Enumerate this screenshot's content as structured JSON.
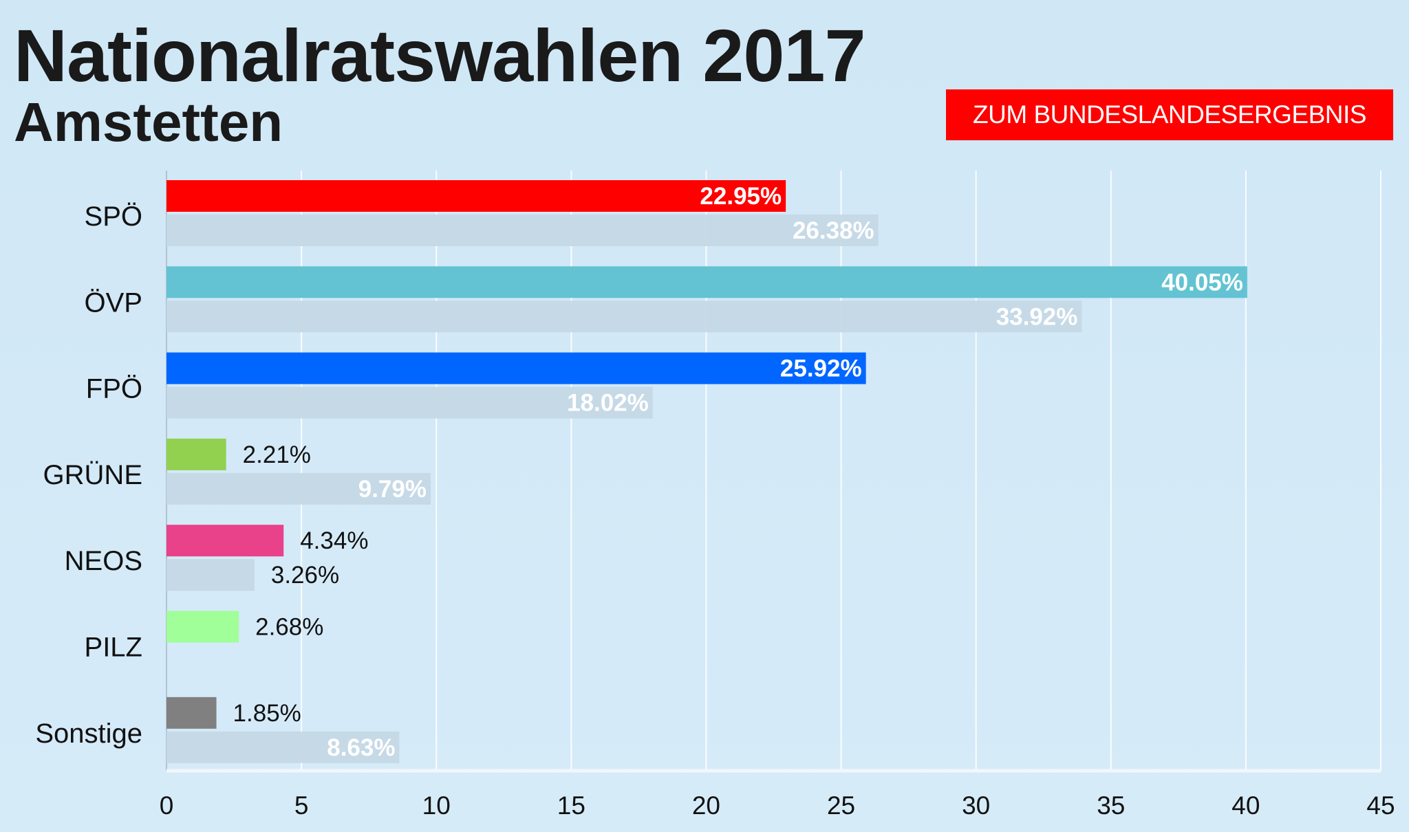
{
  "header": {
    "title": "Nationalratswahlen 2017",
    "subtitle": "Amstetten",
    "button_label": "ZUM BUNDESLANDESERGEBNIS",
    "button_color": "#ff0000"
  },
  "chart_data": {
    "type": "bar",
    "orientation": "horizontal",
    "categories": [
      "SPÖ",
      "ÖVP",
      "FPÖ",
      "GRÜNE",
      "NEOS",
      "PILZ",
      "Sonstige"
    ],
    "series": [
      {
        "values": [
          22.95,
          40.05,
          25.92,
          2.21,
          4.34,
          2.68,
          1.85
        ],
        "labels": [
          "22.95%",
          "40.05%",
          "25.92%",
          "2.21%",
          "4.34%",
          "2.68%",
          "1.85%"
        ],
        "colors": [
          "#ff0000",
          "#63c3d2",
          "#0066ff",
          "#92d050",
          "#e9428a",
          "#a0ff98",
          "#808080"
        ]
      },
      {
        "values": [
          26.38,
          33.92,
          18.02,
          9.79,
          3.26,
          null,
          8.63
        ],
        "labels": [
          "26.38%",
          "33.92%",
          "18.02%",
          "9.79%",
          "3.26%",
          null,
          "8.63%"
        ],
        "color": "#c5d8e5"
      }
    ],
    "xlim": [
      0,
      45
    ],
    "xticks": [
      "0",
      "5",
      "10",
      "15",
      "20",
      "25",
      "30",
      "35",
      "40",
      "45"
    ],
    "grid": true,
    "title": "Nationalratswahlen 2017",
    "subtitle": "Amstetten"
  }
}
